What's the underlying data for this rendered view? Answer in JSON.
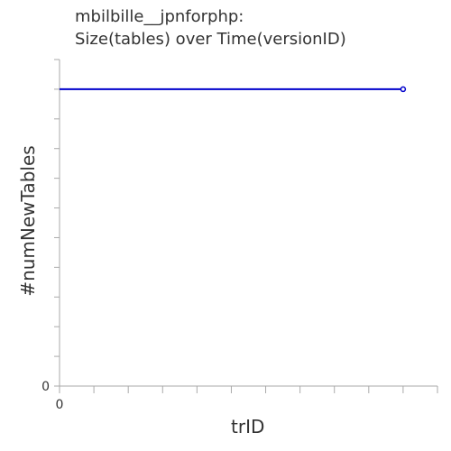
{
  "chart_data": {
    "type": "line",
    "title_lines": [
      "mbilbille__jpnforphp:",
      "Size(tables) over Time(versionID)"
    ],
    "xlabel": "trID",
    "ylabel": "#numNewTables",
    "x_tick_labels": [
      "0"
    ],
    "y_tick_labels": [
      "0"
    ],
    "grid": false,
    "series": [
      {
        "color": "#0000cc",
        "x": [
          0,
          10
        ],
        "y": [
          10,
          10
        ]
      }
    ],
    "xlim": [
      0,
      11
    ],
    "ylim": [
      0,
      11
    ]
  }
}
